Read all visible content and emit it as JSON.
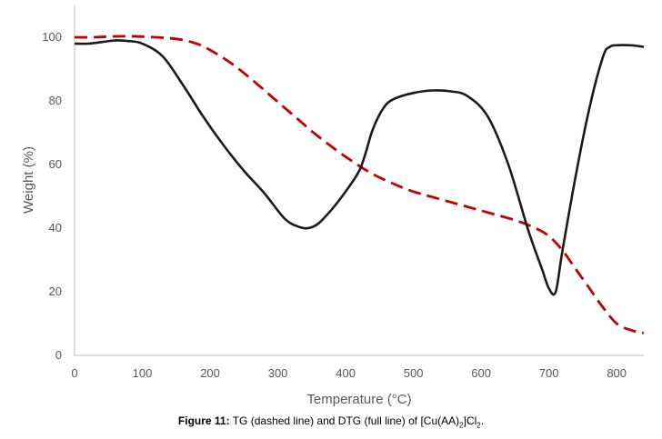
{
  "chart_data": {
    "type": "line",
    "title": "",
    "xlabel": "Temperature (°C)",
    "ylabel": "Weight (%)",
    "xlim": [
      0,
      840
    ],
    "ylim": [
      0,
      110
    ],
    "x_ticks": [
      "0",
      "100",
      "200",
      "300",
      "400",
      "500",
      "600",
      "700",
      "800"
    ],
    "y_ticks": [
      "0",
      "20",
      "40",
      "60",
      "80",
      "100"
    ],
    "grid": false,
    "series": [
      {
        "name": "TG (dashed line)",
        "style": "dashed",
        "color": "#c00000",
        "x": [
          0,
          30,
          60,
          100,
          150,
          180,
          200,
          230,
          260,
          290,
          320,
          350,
          380,
          410,
          440,
          470,
          500,
          550,
          600,
          650,
          680,
          700,
          720,
          740,
          760,
          780,
          800,
          820,
          840
        ],
        "y": [
          100,
          100,
          100.3,
          100.2,
          99.5,
          98,
          96,
          92,
          87,
          81.5,
          76,
          70.5,
          65.5,
          61,
          57,
          54,
          51.5,
          48.5,
          45.5,
          42.5,
          40,
          37.5,
          33,
          27,
          21,
          15,
          10,
          8,
          7
        ]
      },
      {
        "name": "DTG (full line)",
        "style": "solid",
        "color": "#1a1a1a",
        "x": [
          0,
          20,
          40,
          60,
          80,
          100,
          130,
          160,
          190,
          220,
          250,
          280,
          310,
          330,
          345,
          360,
          380,
          400,
          420,
          430,
          440,
          455,
          470,
          500,
          530,
          555,
          580,
          610,
          640,
          670,
          690,
          700,
          710,
          720,
          740,
          760,
          780,
          790,
          800,
          820,
          840
        ],
        "y": [
          98,
          98,
          98.5,
          99,
          98.8,
          98,
          94,
          85,
          75,
          66,
          58,
          51,
          43,
          40.5,
          40,
          41.5,
          46,
          51.5,
          58,
          64,
          71,
          77.5,
          80.5,
          82.5,
          83.3,
          83,
          81.5,
          75,
          60,
          39,
          27,
          21,
          20,
          33,
          57,
          78,
          94,
          97,
          97.5,
          97.5,
          97
        ]
      }
    ],
    "figure_caption": {
      "label": "Figure 11:",
      "text_before": " TG (dashed line) and DTG (full line) of [Cu(AA)",
      "sub1": "2",
      "text_mid": "]Cl",
      "sub2": "2",
      "text_end": "."
    }
  }
}
